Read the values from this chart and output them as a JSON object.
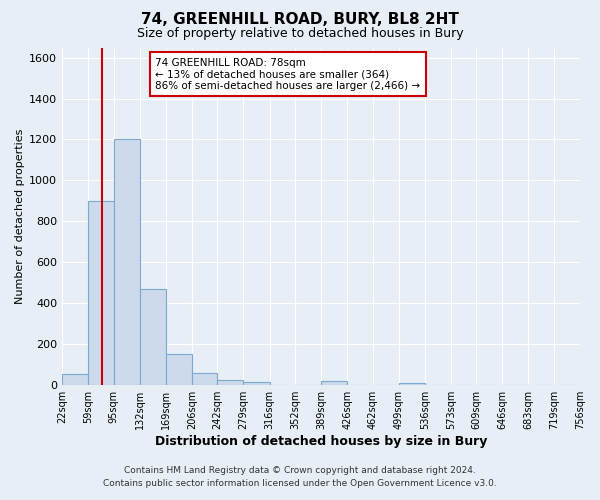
{
  "title": "74, GREENHILL ROAD, BURY, BL8 2HT",
  "subtitle": "Size of property relative to detached houses in Bury",
  "xlabel": "Distribution of detached houses by size in Bury",
  "ylabel": "Number of detached properties",
  "bar_edges": [
    22,
    59,
    95,
    132,
    169,
    206,
    242,
    279,
    316,
    352,
    389,
    426,
    462,
    499,
    536,
    573,
    609,
    646,
    683,
    719,
    756
  ],
  "bar_heights": [
    50,
    900,
    1200,
    470,
    150,
    55,
    25,
    15,
    0,
    0,
    20,
    0,
    0,
    10,
    0,
    0,
    0,
    0,
    0,
    0
  ],
  "bar_color": "#ccdaeb",
  "bar_edge_color": "#7aaad0",
  "ylim": [
    0,
    1650
  ],
  "yticks": [
    0,
    200,
    400,
    600,
    800,
    1000,
    1200,
    1400,
    1600
  ],
  "vline_x": 78,
  "vline_color": "#cc0000",
  "annotation_title": "74 GREENHILL ROAD: 78sqm",
  "annotation_line1": "← 13% of detached houses are smaller (364)",
  "annotation_line2": "86% of semi-detached houses are larger (2,466) →",
  "annotation_box_color": "#ffffff",
  "annotation_box_edge": "#cc0000",
  "tick_labels": [
    "22sqm",
    "59sqm",
    "95sqm",
    "132sqm",
    "169sqm",
    "206sqm",
    "242sqm",
    "279sqm",
    "316sqm",
    "352sqm",
    "389sqm",
    "426sqm",
    "462sqm",
    "499sqm",
    "536sqm",
    "573sqm",
    "609sqm",
    "646sqm",
    "683sqm",
    "719sqm",
    "756sqm"
  ],
  "footer1": "Contains HM Land Registry data © Crown copyright and database right 2024.",
  "footer2": "Contains public sector information licensed under the Open Government Licence v3.0.",
  "background_color": "#e8eef5",
  "grid_color": "#ffffff"
}
